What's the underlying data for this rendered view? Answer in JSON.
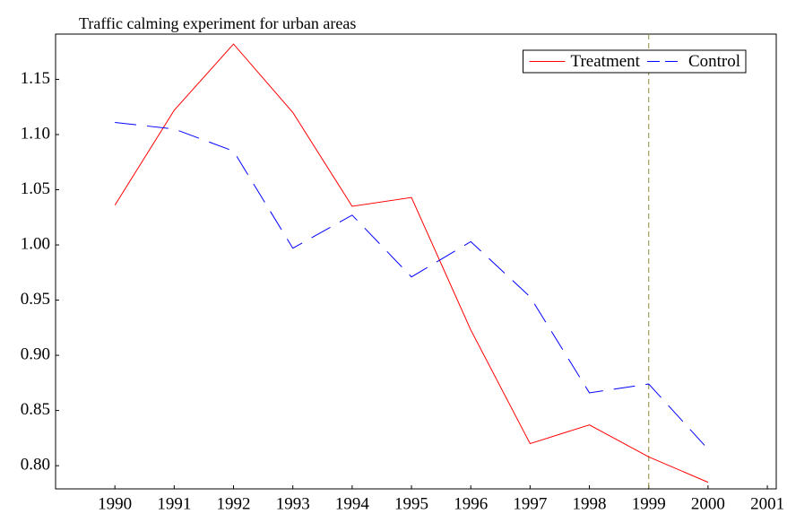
{
  "chart_data": {
    "type": "line",
    "title": "Traffic calming experiment for urban areas",
    "x": [
      1990,
      1991,
      1992,
      1993,
      1994,
      1995,
      1996,
      1997,
      1998,
      1999,
      2000
    ],
    "series": [
      {
        "name": "Treatment",
        "color": "#ff0000",
        "dash": "solid",
        "values": [
          1.036,
          1.122,
          1.182,
          1.12,
          1.035,
          1.043,
          0.923,
          0.82,
          0.837,
          0.808,
          0.785
        ]
      },
      {
        "name": "Control",
        "color": "#0000ff",
        "dash": "dashed",
        "values": [
          1.111,
          1.105,
          1.085,
          0.997,
          1.027,
          0.971,
          1.003,
          0.953,
          0.866,
          0.874,
          0.815
        ]
      }
    ],
    "xlim": [
      1989,
      2001.15
    ],
    "xticks": [
      1990,
      1991,
      1992,
      1993,
      1994,
      1995,
      1996,
      1997,
      1998,
      1999,
      2000,
      2001
    ],
    "ylim": [
      0.779,
      1.191
    ],
    "yticks": [
      {
        "value": 0.8,
        "label": "0.80"
      },
      0.85,
      {
        "value": 0.9,
        "label": "0.90"
      },
      0.95,
      {
        "value": 1.0,
        "label": "1.00"
      },
      1.05,
      {
        "value": 1.1,
        "label": "1.10"
      },
      1.15
    ],
    "vline": {
      "x": 1999,
      "color": "#8c8c3c"
    },
    "grid": false,
    "legend": "top-right"
  }
}
